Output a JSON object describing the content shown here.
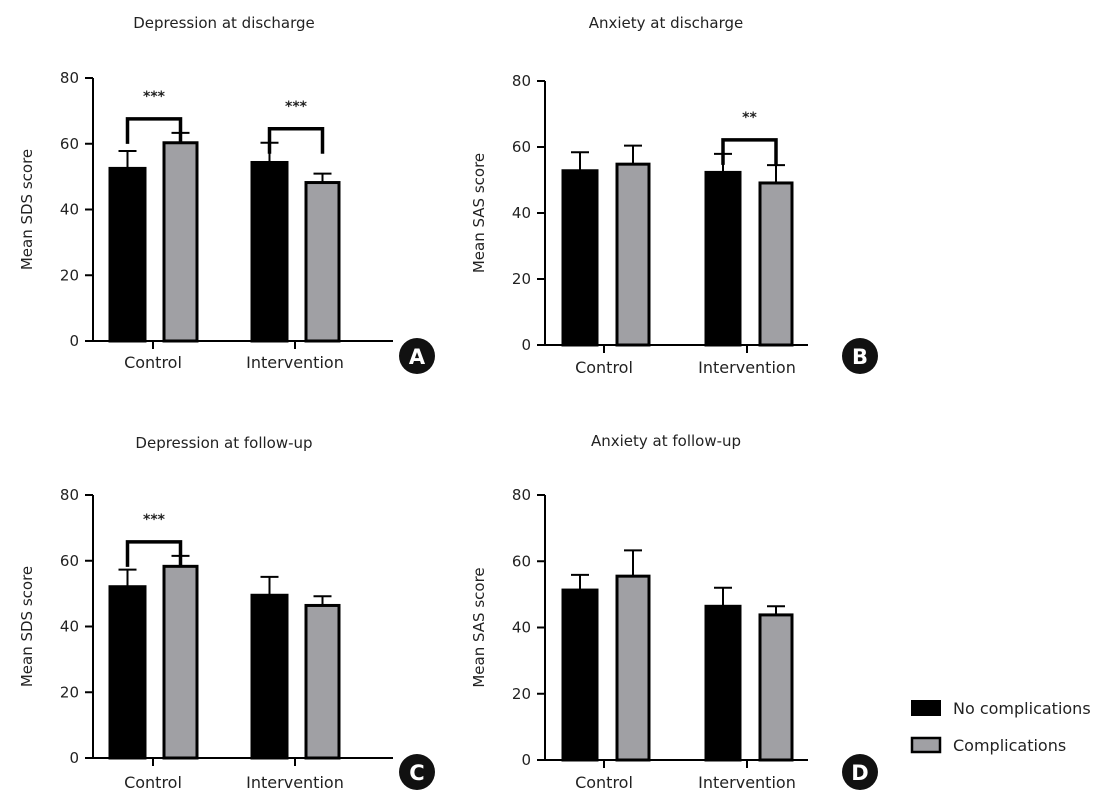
{
  "legend": {
    "items": [
      {
        "label": "No complications",
        "color": "#000000"
      },
      {
        "label": "Complications",
        "color": "#a0a0a4"
      }
    ]
  },
  "chart_data": [
    {
      "type": "bar",
      "panel": "A",
      "title": "Depression at discharge",
      "ylabel": "Mean SDS score",
      "xlabel": "",
      "categories": [
        "Control",
        "Intervention"
      ],
      "ylim": [
        0,
        80
      ],
      "yticks": [
        0,
        20,
        40,
        60,
        80
      ],
      "series": [
        {
          "name": "No complications",
          "values": [
            52.5,
            54.3
          ],
          "errors": [
            5.3,
            6.0
          ]
        },
        {
          "name": "Complications",
          "values": [
            60.3,
            48.2
          ],
          "errors": [
            3.0,
            2.7
          ]
        }
      ],
      "significance": [
        {
          "category": "Control",
          "label": "***"
        },
        {
          "category": "Intervention",
          "label": "***"
        }
      ]
    },
    {
      "type": "bar",
      "panel": "B",
      "title": "Anxiety at discharge",
      "ylabel": "Mean SAS score",
      "xlabel": "",
      "categories": [
        "Control",
        "Intervention"
      ],
      "ylim": [
        0,
        80
      ],
      "yticks": [
        0,
        20,
        40,
        60,
        80
      ],
      "series": [
        {
          "name": "No complications",
          "values": [
            52.8,
            52.3
          ],
          "errors": [
            5.6,
            5.6
          ]
        },
        {
          "name": "Complications",
          "values": [
            54.8,
            49.1
          ],
          "errors": [
            5.6,
            5.4
          ]
        }
      ],
      "significance": [
        {
          "category": "Intervention",
          "label": "**"
        }
      ]
    },
    {
      "type": "bar",
      "panel": "C",
      "title": "Depression at follow-up",
      "ylabel": "Mean SDS score",
      "xlabel": "",
      "categories": [
        "Control",
        "Intervention"
      ],
      "ylim": [
        0,
        80
      ],
      "yticks": [
        0,
        20,
        40,
        60,
        80
      ],
      "series": [
        {
          "name": "No complications",
          "values": [
            52.1,
            49.5
          ],
          "errors": [
            5.2,
            5.6
          ]
        },
        {
          "name": "Complications",
          "values": [
            58.3,
            46.4
          ],
          "errors": [
            3.2,
            2.8
          ]
        }
      ],
      "significance": [
        {
          "category": "Control",
          "label": "***"
        }
      ]
    },
    {
      "type": "bar",
      "panel": "D",
      "title": "Anxiety at follow-up",
      "ylabel": "Mean SAS score",
      "xlabel": "",
      "categories": [
        "Control",
        "Intervention"
      ],
      "ylim": [
        0,
        80
      ],
      "yticks": [
        0,
        20,
        40,
        60,
        80
      ],
      "series": [
        {
          "name": "No complications",
          "values": [
            51.3,
            46.4
          ],
          "errors": [
            4.6,
            5.6
          ]
        },
        {
          "name": "Complications",
          "values": [
            55.5,
            43.8
          ],
          "errors": [
            7.8,
            2.6
          ]
        }
      ],
      "significance": []
    }
  ]
}
